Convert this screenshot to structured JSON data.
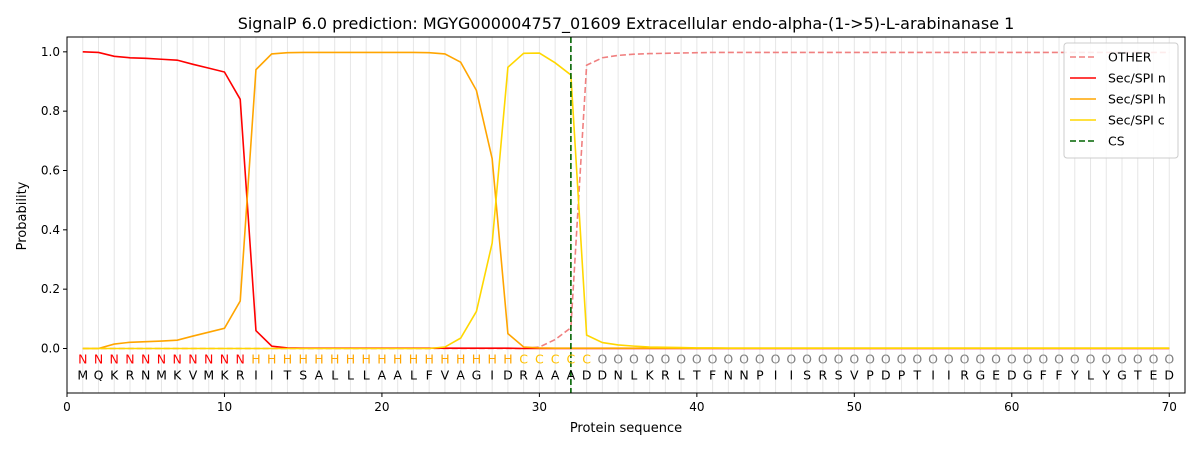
{
  "chart_data": {
    "type": "line",
    "title": "SignalP 6.0 prediction: MGYG000004757_01609 Extracellular endo-alpha-(1->5)-L-arabinanase 1",
    "xlabel": "Protein sequence",
    "ylabel": "Probability",
    "xlim": [
      0,
      71
    ],
    "ylim": [
      -0.15,
      1.05
    ],
    "x_ticks": [
      0,
      10,
      20,
      30,
      40,
      50,
      60,
      70
    ],
    "y_ticks": [
      0.0,
      0.2,
      0.4,
      0.6,
      0.8,
      1.0
    ],
    "x_tick_labels": [
      "0",
      "10",
      "20",
      "30",
      "40",
      "50",
      "60",
      "70"
    ],
    "y_tick_labels": [
      "0.0",
      "0.2",
      "0.4",
      "0.6",
      "0.8",
      "1.0"
    ],
    "grid": "vertical lines at each residue",
    "legend_position": "top-right",
    "sequence": "MQKRNMKVMKRIITSALLLAALFVAGIDRAAADDNLKRLTFNNPIISRSVPDPTIIRGEDGFFYLYGTED",
    "labels": "NNNNNNNNNNNHHHHHHHHHHHHHHHHHCCCCCOOOOOOOOOOOOOOOOOOOOOOOOOOOOOOOOOOOOOO",
    "label_colors": {
      "N": "#ff0000",
      "H": "#ffa500",
      "C": "#ffc000",
      "O": "#808080"
    },
    "cleavage_site": 32,
    "series": [
      {
        "name": "OTHER",
        "color": "#f08080",
        "dash": "dashed",
        "values": [
          0.0,
          0.0,
          0.0,
          0.0,
          0.0,
          0.0,
          0.0,
          0.0,
          0.0,
          0.0,
          0.0,
          0.0,
          0.0,
          0.0,
          0.0,
          0.0,
          0.0,
          0.0,
          0.0,
          0.0,
          0.0,
          0.0,
          0.0,
          0.0,
          0.0,
          0.0,
          0.0,
          0.0,
          0.0,
          0.005,
          0.03,
          0.07,
          0.955,
          0.98,
          0.988,
          0.992,
          0.994,
          0.995,
          0.996,
          0.997,
          0.998,
          0.998,
          0.998,
          0.998,
          0.998,
          0.998,
          0.998,
          0.998,
          0.998,
          0.998,
          0.998,
          0.998,
          0.998,
          0.998,
          0.998,
          0.998,
          0.998,
          0.998,
          0.998,
          0.998,
          0.998,
          0.998,
          0.998,
          0.998,
          0.998,
          0.998,
          0.998,
          0.998,
          0.998,
          0.998
        ]
      },
      {
        "name": "Sec/SPI n",
        "color": "#ff0000",
        "dash": "solid",
        "values": [
          1.0,
          0.998,
          0.985,
          0.98,
          0.978,
          0.975,
          0.972,
          0.958,
          0.945,
          0.932,
          0.84,
          0.06,
          0.008,
          0.002,
          0.001,
          0.001,
          0.001,
          0.001,
          0.001,
          0.001,
          0.001,
          0.001,
          0.001,
          0.001,
          0.001,
          0.001,
          0.001,
          0.001,
          0.0,
          0.0,
          0.0,
          0.0,
          0.0,
          0.0,
          0.0,
          0.0,
          0.0,
          0.0,
          0.0,
          0.0,
          0.0,
          0.0,
          0.0,
          0.0,
          0.0,
          0.0,
          0.0,
          0.0,
          0.0,
          0.0,
          0.0,
          0.0,
          0.0,
          0.0,
          0.0,
          0.0,
          0.0,
          0.0,
          0.0,
          0.0,
          0.0,
          0.0,
          0.0,
          0.0,
          0.0,
          0.0,
          0.0,
          0.0,
          0.0,
          0.0
        ]
      },
      {
        "name": "Sec/SPI h",
        "color": "#ffa500",
        "dash": "solid",
        "values": [
          0.0,
          0.0,
          0.015,
          0.021,
          0.023,
          0.025,
          0.028,
          0.042,
          0.055,
          0.068,
          0.16,
          0.94,
          0.993,
          0.997,
          0.998,
          0.998,
          0.998,
          0.998,
          0.998,
          0.998,
          0.998,
          0.998,
          0.997,
          0.993,
          0.965,
          0.87,
          0.64,
          0.05,
          0.005,
          0.002,
          0.001,
          0.001,
          0.001,
          0.001,
          0.001,
          0.001,
          0.001,
          0.001,
          0.001,
          0.001,
          0.001,
          0.001,
          0.001,
          0.001,
          0.001,
          0.001,
          0.001,
          0.001,
          0.001,
          0.001,
          0.001,
          0.001,
          0.001,
          0.001,
          0.001,
          0.001,
          0.001,
          0.001,
          0.001,
          0.001,
          0.001,
          0.001,
          0.001,
          0.001,
          0.001,
          0.001,
          0.001,
          0.001,
          0.001,
          0.001
        ]
      },
      {
        "name": "Sec/SPI c",
        "color": "#ffd700",
        "dash": "solid",
        "values": [
          0.0,
          0.0,
          0.0,
          0.0,
          0.0,
          0.0,
          0.0,
          0.0,
          0.0,
          0.0,
          0.0,
          0.0,
          0.0,
          0.0,
          0.0,
          0.0,
          0.0,
          0.0,
          0.0,
          0.0,
          0.0,
          0.0,
          0.0,
          0.005,
          0.035,
          0.125,
          0.355,
          0.948,
          0.995,
          0.996,
          0.963,
          0.922,
          0.045,
          0.02,
          0.012,
          0.008,
          0.005,
          0.004,
          0.003,
          0.002,
          0.002,
          0.001,
          0.001,
          0.001,
          0.001,
          0.001,
          0.001,
          0.001,
          0.001,
          0.001,
          0.001,
          0.001,
          0.001,
          0.001,
          0.001,
          0.001,
          0.001,
          0.001,
          0.001,
          0.001,
          0.001,
          0.001,
          0.001,
          0.001,
          0.001,
          0.001,
          0.001,
          0.001,
          0.001,
          0.001
        ]
      }
    ],
    "cs_legend": {
      "name": "CS",
      "color": "#006400",
      "dash": "dashed"
    }
  }
}
